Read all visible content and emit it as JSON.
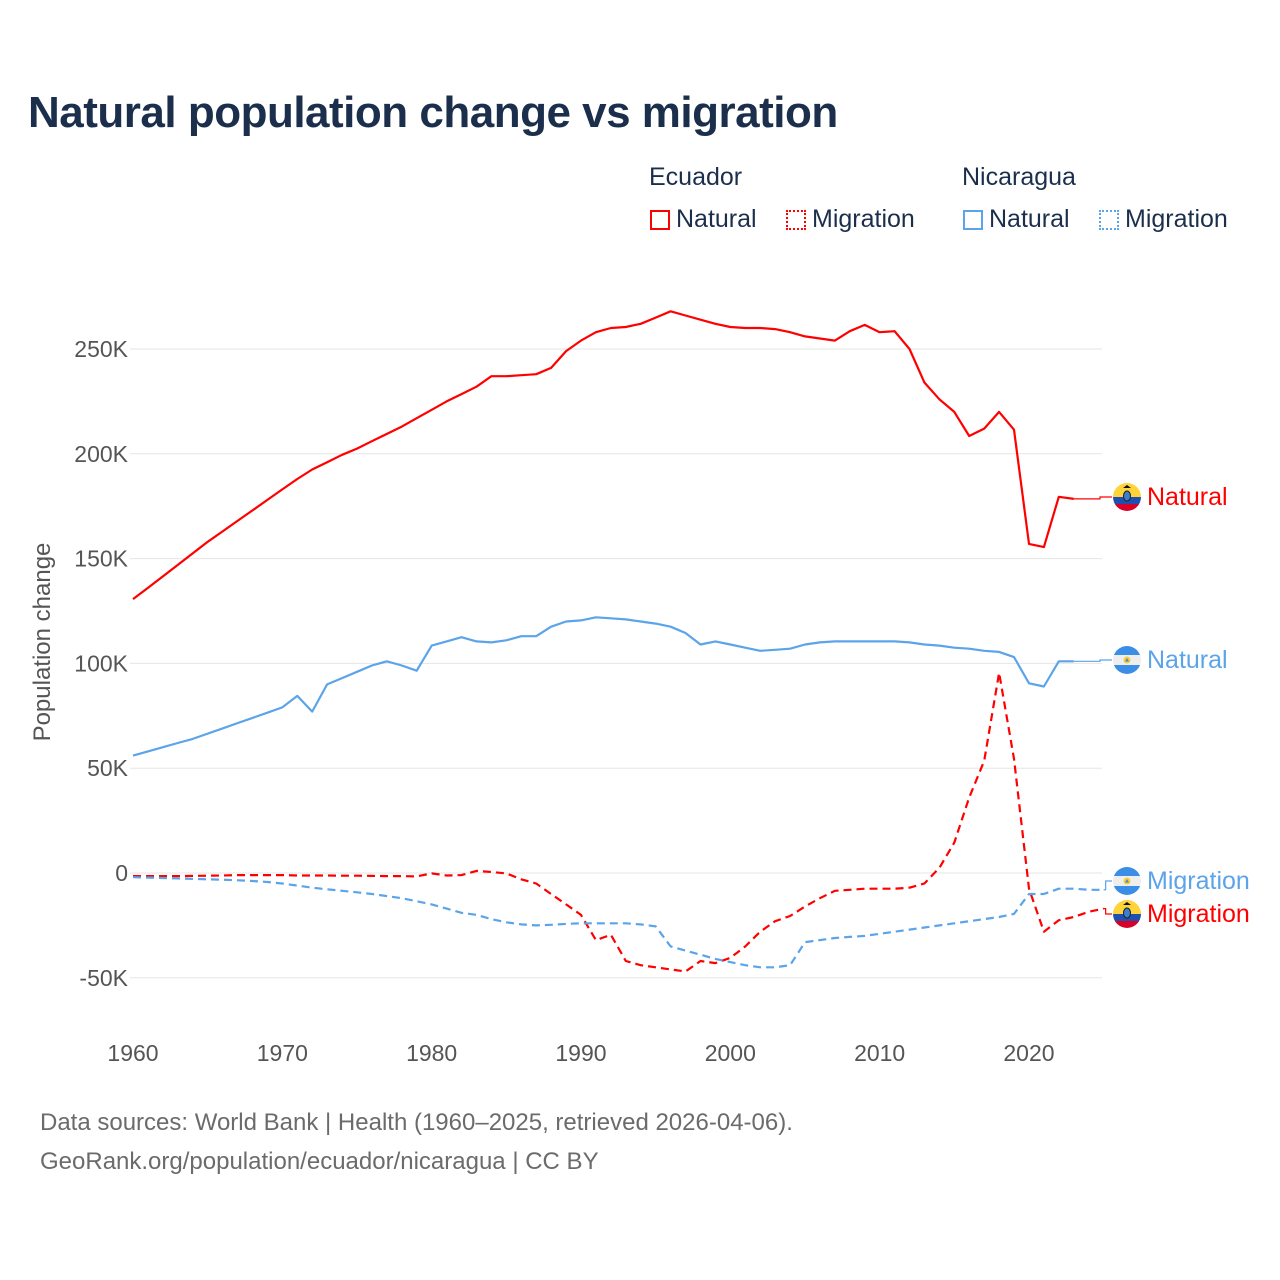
{
  "title": "Natural population change vs migration",
  "legend": {
    "groups": [
      {
        "name": "Ecuador",
        "items": [
          {
            "label": "Natural",
            "style": "solid",
            "color": "#ff0000"
          },
          {
            "label": "Migration",
            "style": "dotted",
            "color": "#ff0000"
          }
        ]
      },
      {
        "name": "Nicaragua",
        "items": [
          {
            "label": "Natural",
            "style": "solid",
            "color": "#5ba4ea"
          },
          {
            "label": "Migration",
            "style": "dotted",
            "color": "#5ba4ea"
          }
        ]
      }
    ]
  },
  "source": {
    "line1": "Data sources: World Bank | Health (1960–2025, retrieved 2026-04-06).",
    "line2": "GeoRank.org/population/ecuador/nicaragua | CC BY"
  },
  "chart_data": {
    "type": "line",
    "title": "Natural population change vs migration",
    "xlabel": "",
    "ylabel": "Population change",
    "xlim": [
      1960,
      2025
    ],
    "ylim": [
      -50000,
      270000
    ],
    "xticks": [
      1960,
      1970,
      1980,
      1990,
      2000,
      2010,
      2020
    ],
    "yticks": [
      {
        "v": -50000,
        "label": "-50K"
      },
      {
        "v": 0,
        "label": "0"
      },
      {
        "v": 50000,
        "label": "50K"
      },
      {
        "v": 100000,
        "label": "100K"
      },
      {
        "v": 150000,
        "label": "150K"
      },
      {
        "v": 200000,
        "label": "200K"
      },
      {
        "v": 250000,
        "label": "250K"
      }
    ],
    "grid": true,
    "series": [
      {
        "name": "Ecuador Natural",
        "country": "Ecuador",
        "end_label": "Natural",
        "color": "#ff0000",
        "dash": false,
        "flag": "ecuador",
        "start": 1960,
        "values": [
          130700,
          136000,
          141500,
          147000,
          152500,
          158000,
          163000,
          168000,
          173000,
          178000,
          183000,
          188000,
          192500,
          196000,
          199500,
          202500,
          206000,
          209500,
          213000,
          217000,
          221000,
          225000,
          228500,
          232000,
          237000,
          237000,
          237500,
          238000,
          241000,
          249000,
          254000,
          258000,
          260000,
          260500,
          262000,
          265000,
          268000,
          266000,
          264000,
          262000,
          260500,
          260000,
          260000,
          259500,
          258000,
          256000,
          255000,
          254000,
          258500,
          261500,
          258000,
          258500,
          250000,
          234000,
          226000,
          220000,
          208500,
          212000,
          220000,
          211500,
          157000,
          155500,
          179500,
          178500
        ]
      },
      {
        "name": "Nicaragua Natural",
        "country": "Nicaragua",
        "end_label": "Natural",
        "color": "#5ba4ea",
        "dash": false,
        "flag": "nicaragua",
        "start": 1960,
        "values": [
          56000,
          58000,
          60000,
          62000,
          64000,
          66500,
          69000,
          71500,
          74000,
          76500,
          79000,
          84500,
          77000,
          90000,
          93000,
          96000,
          99000,
          101000,
          99000,
          96500,
          108500,
          110500,
          112500,
          110500,
          110000,
          111000,
          113000,
          113000,
          117500,
          120000,
          120500,
          122000,
          121500,
          121000,
          120000,
          119000,
          117500,
          114500,
          109000,
          110500,
          109000,
          107500,
          106000,
          106500,
          107000,
          109000,
          110000,
          110500,
          110500,
          110500,
          110500,
          110500,
          110000,
          109000,
          108500,
          107500,
          107000,
          106000,
          105500,
          103000,
          90500,
          89000,
          101000,
          101000
        ]
      },
      {
        "name": "Ecuador Migration",
        "country": "Ecuador",
        "end_label": "Migration",
        "color": "#ff0000",
        "dash": true,
        "flag": "ecuador",
        "start": 1960,
        "values": [
          -1500,
          -1500,
          -1500,
          -1500,
          -1400,
          -1300,
          -1200,
          -1000,
          -1000,
          -1000,
          -1000,
          -1200,
          -1200,
          -1200,
          -1300,
          -1300,
          -1400,
          -1500,
          -1500,
          -1600,
          -200,
          -1200,
          -1000,
          1000,
          500,
          -200,
          -3000,
          -5000,
          -10000,
          -15000,
          -20000,
          -32000,
          -29500,
          -42000,
          -44000,
          -45000,
          -46000,
          -47000,
          -42000,
          -43000,
          -40500,
          -35000,
          -28000,
          -23000,
          -20500,
          -16000,
          -12000,
          -8500,
          -8000,
          -7500,
          -7500,
          -7500,
          -7000,
          -5000,
          2500,
          14500,
          36000,
          53500,
          95500,
          54500,
          -7500,
          -28000,
          -22500,
          -21000,
          -18500,
          -17000
        ]
      },
      {
        "name": "Nicaragua Migration",
        "country": "Nicaragua",
        "end_label": "Migration",
        "color": "#5ba4ea",
        "dash": true,
        "flag": "nicaragua",
        "start": 1960,
        "values": [
          -2000,
          -2200,
          -2400,
          -2600,
          -2800,
          -3000,
          -3200,
          -3500,
          -3800,
          -4300,
          -5000,
          -6000,
          -7000,
          -7800,
          -8500,
          -9200,
          -10000,
          -11000,
          -12000,
          -13500,
          -15000,
          -17000,
          -19000,
          -20000,
          -22000,
          -23500,
          -24500,
          -25000,
          -24700,
          -24300,
          -24000,
          -24000,
          -24000,
          -24000,
          -24500,
          -25500,
          -35000,
          -37000,
          -39000,
          -41000,
          -42500,
          -44000,
          -45000,
          -45000,
          -44000,
          -33000,
          -32000,
          -31000,
          -30500,
          -30000,
          -29000,
          -28000,
          -27000,
          -26000,
          -25000,
          -24000,
          -23000,
          -22000,
          -21000,
          -19500,
          -10000,
          -10000,
          -7500,
          -7500,
          -8000,
          -8000
        ]
      }
    ]
  }
}
